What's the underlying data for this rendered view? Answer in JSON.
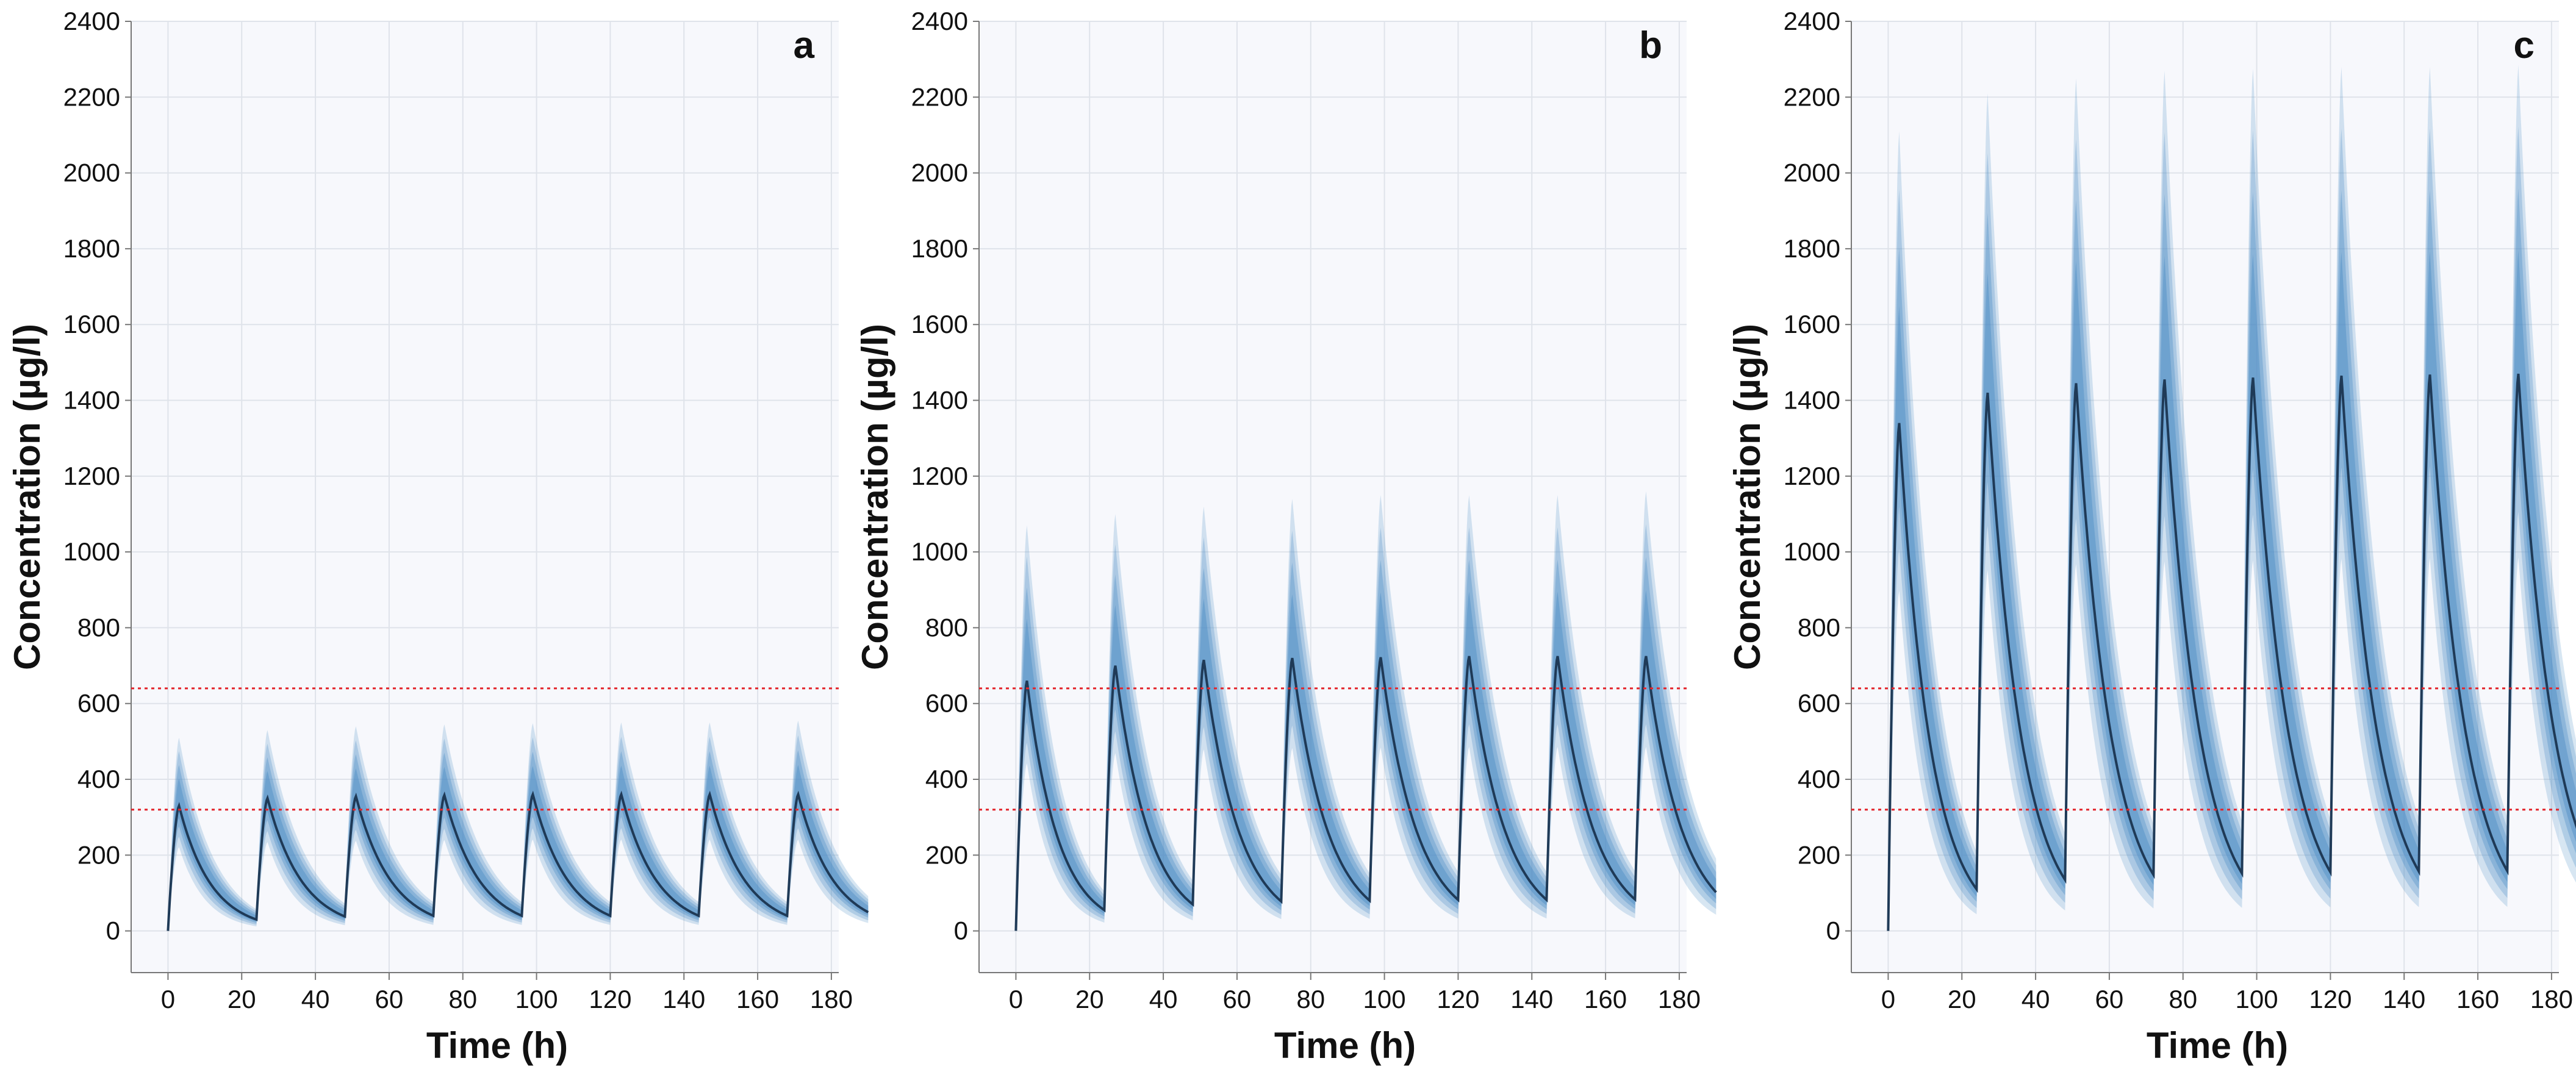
{
  "chart_data": [
    {
      "type": "line",
      "panel_label": "a",
      "xlabel": "Time (h)",
      "ylabel": "Concentration (µg/l)",
      "xlim": [
        -10,
        182
      ],
      "ylim": [
        -110,
        2400
      ],
      "xticks": [
        "0",
        "20",
        "40",
        "60",
        "80",
        "100",
        "120",
        "140",
        "160",
        "180"
      ],
      "yticks": [
        "0",
        "200",
        "400",
        "600",
        "800",
        "1000",
        "1200",
        "1400",
        "1600",
        "1800",
        "2000",
        "2200",
        "2400"
      ],
      "grid": true,
      "dose_interval_h": 24,
      "doses": 8,
      "median_peak": [
        330,
        350,
        355,
        358,
        360,
        360,
        360,
        360
      ],
      "median_trough": [
        30,
        38,
        40,
        40,
        40,
        40,
        40,
        40
      ],
      "band_outer_peak": [
        510,
        530,
        540,
        545,
        548,
        550,
        550,
        555
      ],
      "reference_lines": [
        640,
        320
      ]
    },
    {
      "type": "line",
      "panel_label": "b",
      "xlabel": "Time (h)",
      "ylabel": "Concentration (µg/l)",
      "xlim": [
        -10,
        182
      ],
      "ylim": [
        -110,
        2400
      ],
      "xticks": [
        "0",
        "20",
        "40",
        "60",
        "80",
        "100",
        "120",
        "140",
        "160",
        "180"
      ],
      "yticks": [
        "0",
        "200",
        "400",
        "600",
        "800",
        "1000",
        "1200",
        "1400",
        "1600",
        "1800",
        "2000",
        "2200",
        "2400"
      ],
      "grid": true,
      "dose_interval_h": 24,
      "doses": 8,
      "median_peak": [
        660,
        700,
        715,
        720,
        722,
        725,
        725,
        725
      ],
      "median_trough": [
        55,
        70,
        78,
        80,
        82,
        82,
        83,
        83
      ],
      "band_outer_peak": [
        1070,
        1100,
        1120,
        1140,
        1150,
        1150,
        1150,
        1160
      ],
      "reference_lines": [
        640,
        320
      ]
    },
    {
      "type": "line",
      "panel_label": "c",
      "xlabel": "Time (h)",
      "ylabel": "Concentration (µg/l)",
      "xlim": [
        -10,
        182
      ],
      "ylim": [
        -110,
        2400
      ],
      "xticks": [
        "0",
        "20",
        "40",
        "60",
        "80",
        "100",
        "120",
        "140",
        "160",
        "180"
      ],
      "yticks": [
        "0",
        "200",
        "400",
        "600",
        "800",
        "1000",
        "1200",
        "1400",
        "1600",
        "1800",
        "2000",
        "2200",
        "2400"
      ],
      "grid": true,
      "dose_interval_h": 24,
      "doses": 8,
      "median_peak": [
        1340,
        1420,
        1445,
        1455,
        1460,
        1465,
        1468,
        1470
      ],
      "median_trough": [
        110,
        135,
        148,
        152,
        155,
        157,
        158,
        158
      ],
      "band_outer_peak": [
        2110,
        2210,
        2250,
        2270,
        2275,
        2280,
        2280,
        2285
      ],
      "reference_lines": [
        640,
        320
      ]
    }
  ],
  "colors": {
    "median": "#1f3a57",
    "band": "#4a8bc4",
    "reference": "#e3242b",
    "grid": "#dfe3ea",
    "plot_bg": "#f7f8fc"
  }
}
